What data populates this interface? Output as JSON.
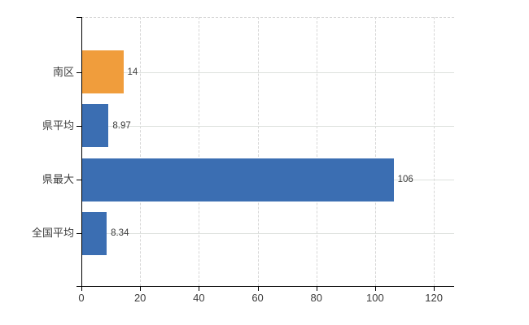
{
  "chart_data": {
    "type": "bar",
    "orientation": "horizontal",
    "title": "",
    "xlabel": "",
    "ylabel": "",
    "categories": [
      "南区",
      "県平均",
      "県最大",
      "全国平均"
    ],
    "values": [
      14,
      8.97,
      106,
      8.34
    ],
    "value_labels": [
      "14",
      "8.97",
      "106",
      "8.34"
    ],
    "bar_colors": [
      "#f09d3c",
      "#3b6eb2",
      "#3b6eb2",
      "#3b6eb2"
    ],
    "xlim": [
      0,
      126.9
    ],
    "xticks": [
      0,
      20,
      40,
      60,
      80,
      100,
      120
    ],
    "xtick_labels": [
      "0",
      "20",
      "40",
      "60",
      "80",
      "100",
      "120"
    ],
    "grid": true,
    "legend": false,
    "background": "#ffffff",
    "colors": {
      "axis": "#000000",
      "gridline_vertical": "#d6d6d6",
      "gridline_horizontal": "#dde1dd",
      "tick_label": "#3c3c3c",
      "value_label": "#3c3c3c"
    }
  }
}
